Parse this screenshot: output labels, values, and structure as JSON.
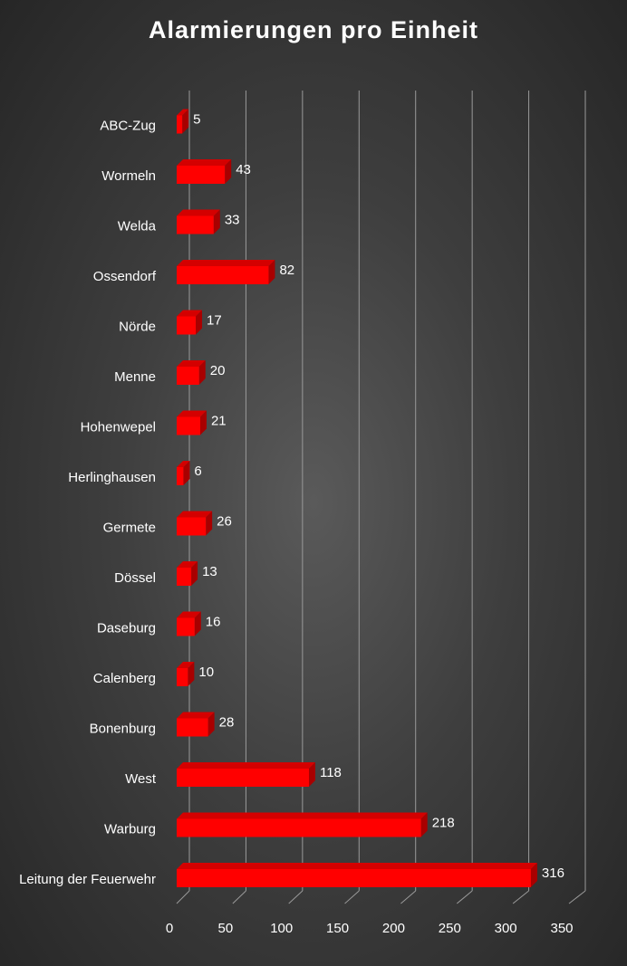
{
  "chart_data": {
    "type": "bar",
    "orientation": "horizontal",
    "title": "Alarmierungen pro Einheit",
    "xlabel": "",
    "ylabel": "",
    "categories": [
      "ABC-Zug",
      "Wormeln",
      "Welda",
      "Ossendorf",
      "Nörde",
      "Menne",
      "Hohenwepel",
      "Herlinghausen",
      "Germete",
      "Dössel",
      "Daseburg",
      "Calenberg",
      "Bonenburg",
      "West",
      "Warburg",
      "Leitung der Feuerwehr"
    ],
    "values": [
      5,
      43,
      33,
      82,
      17,
      20,
      21,
      6,
      26,
      13,
      16,
      10,
      28,
      118,
      218,
      316
    ],
    "xlim": [
      0,
      350
    ],
    "ticks": [
      0,
      50,
      100,
      150,
      200,
      250,
      300,
      350
    ],
    "grid": true,
    "legend": "none",
    "data_labels": true,
    "style": "3d"
  },
  "colors": {
    "bar_front": "#ff0000",
    "bar_top": "#d40000",
    "bar_side": "#a80000",
    "grid": "#9a9a9a",
    "text": "#ffffff"
  }
}
